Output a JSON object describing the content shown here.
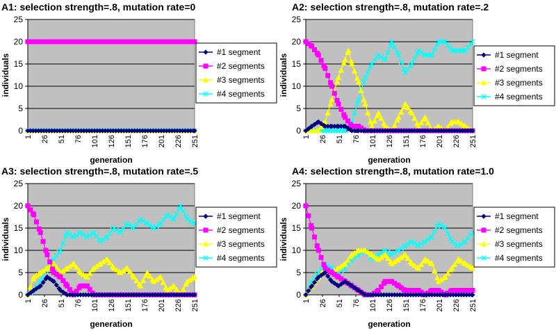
{
  "chart_data": [
    {
      "type": "line",
      "title": "A1: selection strength=.8, mutation rate=0",
      "xlabel": "generation",
      "ylabel": "individuals",
      "ylim": [
        0,
        25
      ],
      "yticks": [
        "0",
        "5",
        "10",
        "15",
        "20",
        "25"
      ],
      "xticks": [
        "1",
        "26",
        "51",
        "76",
        "101",
        "126",
        "151",
        "176",
        "201",
        "226",
        "251"
      ],
      "xtick_values": [
        1,
        26,
        51,
        76,
        101,
        126,
        151,
        176,
        201,
        226,
        251
      ],
      "xlim": [
        1,
        251
      ],
      "series": [
        {
          "name": "#1 segment",
          "color": "#000080",
          "marker": "diamond",
          "x": [
            1,
            251
          ],
          "y": [
            0,
            0
          ]
        },
        {
          "name": "#2 segments",
          "color": "#FF00FF",
          "marker": "square",
          "x": [
            1,
            251
          ],
          "y": [
            20,
            20
          ]
        },
        {
          "name": "#3 segments",
          "color": "#FFFF00",
          "marker": "triangle",
          "x": [
            1,
            251
          ],
          "y": [
            0,
            0
          ]
        },
        {
          "name": "#4 segments",
          "color": "#00FFFF",
          "marker": "x",
          "x": [
            1,
            251
          ],
          "y": [
            0,
            0
          ]
        }
      ]
    },
    {
      "type": "line",
      "title": "A2: selection strength=.8, mutation rate=.2",
      "xlabel": "generation",
      "ylabel": "individuals",
      "ylim": [
        0,
        25
      ],
      "yticks": [
        "0",
        "5",
        "10",
        "15",
        "20",
        "25"
      ],
      "xticks": [
        "1",
        "26",
        "51",
        "76",
        "101",
        "126",
        "151",
        "176",
        "201",
        "226",
        "251"
      ],
      "xtick_values": [
        1,
        26,
        51,
        76,
        101,
        126,
        151,
        176,
        201,
        226,
        251
      ],
      "xlim": [
        1,
        251
      ],
      "series": [
        {
          "name": "#1 segment",
          "color": "#000080",
          "marker": "diamond",
          "x": [
            1,
            10,
            20,
            30,
            40,
            50,
            60,
            70,
            80,
            90,
            100,
            251
          ],
          "y": [
            0,
            1,
            2,
            1,
            1,
            1,
            1,
            0,
            0,
            0,
            0,
            0
          ]
        },
        {
          "name": "#2 segments",
          "color": "#FF00FF",
          "marker": "square",
          "x": [
            1,
            10,
            20,
            30,
            40,
            50,
            60,
            70,
            80,
            90,
            100,
            120,
            140,
            180,
            200,
            230,
            251
          ],
          "y": [
            20,
            19,
            17,
            14,
            10,
            6,
            3,
            1,
            1,
            0,
            0,
            0,
            0,
            0,
            0,
            0,
            0
          ]
        },
        {
          "name": "#3 segments",
          "color": "#FFFF00",
          "marker": "triangle",
          "x": [
            1,
            20,
            30,
            40,
            50,
            60,
            65,
            70,
            80,
            90,
            100,
            110,
            120,
            130,
            140,
            150,
            160,
            170,
            180,
            190,
            200,
            210,
            220,
            230,
            240,
            251
          ],
          "y": [
            0,
            0,
            2,
            7,
            12,
            16,
            18,
            15,
            11,
            6,
            1,
            4,
            1,
            0,
            3,
            6,
            4,
            1,
            3,
            0,
            1,
            0,
            2,
            2,
            1,
            0
          ]
        },
        {
          "name": "#4 segments",
          "color": "#00FFFF",
          "marker": "x",
          "x": [
            1,
            30,
            50,
            60,
            70,
            80,
            90,
            100,
            110,
            120,
            130,
            140,
            150,
            160,
            170,
            180,
            190,
            200,
            210,
            220,
            230,
            240,
            251
          ],
          "y": [
            0,
            0,
            0,
            0,
            2,
            7,
            12,
            15,
            17,
            16,
            20,
            17,
            13,
            15,
            18,
            17,
            17,
            20,
            20,
            18,
            18,
            18,
            20
          ]
        }
      ]
    },
    {
      "type": "line",
      "title": "A3: selection strength=.8, mutation rate=.5",
      "xlabel": "generation",
      "ylabel": "individuals",
      "ylim": [
        0,
        25
      ],
      "yticks": [
        "0",
        "5",
        "10",
        "15",
        "20",
        "25"
      ],
      "xticks": [
        "1",
        "26",
        "51",
        "76",
        "101",
        "126",
        "151",
        "176",
        "201",
        "226",
        "251"
      ],
      "xtick_values": [
        1,
        26,
        51,
        76,
        101,
        126,
        151,
        176,
        201,
        226,
        251
      ],
      "xlim": [
        1,
        251
      ],
      "series": [
        {
          "name": "#1 segment",
          "color": "#000080",
          "marker": "diamond",
          "x": [
            1,
            10,
            20,
            30,
            40,
            50,
            60,
            251
          ],
          "y": [
            0,
            1,
            2,
            4,
            3,
            1,
            0,
            0
          ]
        },
        {
          "name": "#2 segments",
          "color": "#FF00FF",
          "marker": "square",
          "x": [
            1,
            10,
            20,
            30,
            40,
            50,
            60,
            70,
            80,
            90,
            100,
            110,
            120,
            150,
            200,
            251
          ],
          "y": [
            20,
            18,
            14,
            9,
            5,
            4,
            2,
            0,
            2,
            2,
            0,
            0,
            0,
            0,
            0,
            0
          ]
        },
        {
          "name": "#3 segments",
          "color": "#FFFF00",
          "marker": "triangle",
          "x": [
            1,
            10,
            20,
            30,
            40,
            50,
            60,
            70,
            80,
            90,
            100,
            110,
            120,
            130,
            140,
            150,
            160,
            170,
            180,
            190,
            200,
            210,
            220,
            230,
            240,
            251
          ],
          "y": [
            0,
            4,
            5,
            6,
            7,
            5,
            6,
            7,
            5,
            4,
            6,
            7,
            8,
            6,
            5,
            6,
            4,
            2,
            5,
            3,
            4,
            1,
            2,
            0,
            3,
            4
          ]
        },
        {
          "name": "#4 segments",
          "color": "#00FFFF",
          "marker": "x",
          "x": [
            1,
            10,
            20,
            30,
            40,
            50,
            60,
            70,
            80,
            90,
            100,
            110,
            120,
            130,
            140,
            150,
            160,
            170,
            180,
            190,
            200,
            210,
            220,
            230,
            240,
            251
          ],
          "y": [
            0,
            1,
            3,
            6,
            8,
            10,
            14,
            13,
            14,
            13,
            14,
            12,
            13,
            15,
            14,
            16,
            15,
            17,
            16,
            15,
            16,
            18,
            17,
            20,
            17,
            16
          ]
        }
      ]
    },
    {
      "type": "line",
      "title": "A4: selection strength=.8, mutation rate=1.0",
      "xlabel": "generation",
      "ylabel": "individuals",
      "ylim": [
        0,
        25
      ],
      "yticks": [
        "0",
        "5",
        "10",
        "15",
        "20",
        "25"
      ],
      "xticks": [
        "1",
        "26",
        "51",
        "76",
        "101",
        "126",
        "151",
        "176",
        "201",
        "226",
        "251"
      ],
      "xtick_values": [
        1,
        26,
        51,
        76,
        101,
        126,
        151,
        176,
        201,
        226,
        251
      ],
      "xlim": [
        1,
        251
      ],
      "series": [
        {
          "name": "#1 segment",
          "color": "#000080",
          "marker": "diamond",
          "x": [
            1,
            10,
            20,
            30,
            40,
            50,
            60,
            70,
            80,
            90,
            251
          ],
          "y": [
            0,
            2,
            4,
            5,
            3,
            2,
            3,
            2,
            1,
            0,
            0
          ]
        },
        {
          "name": "#2 segments",
          "color": "#FF00FF",
          "marker": "square",
          "x": [
            1,
            10,
            20,
            30,
            40,
            50,
            60,
            70,
            80,
            90,
            100,
            110,
            120,
            130,
            140,
            150,
            160,
            170,
            180,
            190,
            200,
            210,
            220,
            230,
            240,
            251
          ],
          "y": [
            20,
            15,
            10,
            6,
            5,
            4,
            3,
            2,
            1,
            0,
            0,
            1,
            3,
            3,
            2,
            1,
            1,
            1,
            0,
            1,
            1,
            0,
            1,
            1,
            1,
            1
          ]
        },
        {
          "name": "#3 segments",
          "color": "#FFFF00",
          "marker": "triangle",
          "x": [
            1,
            10,
            20,
            30,
            40,
            50,
            60,
            70,
            80,
            90,
            100,
            110,
            120,
            130,
            140,
            150,
            160,
            170,
            180,
            190,
            200,
            210,
            220,
            230,
            240,
            251
          ],
          "y": [
            0,
            2,
            4,
            6,
            5,
            6,
            7,
            9,
            10,
            10,
            9,
            8,
            9,
            7,
            8,
            9,
            7,
            6,
            8,
            7,
            3,
            4,
            6,
            8,
            7,
            6
          ]
        },
        {
          "name": "#4 segments",
          "color": "#00FFFF",
          "marker": "x",
          "x": [
            1,
            10,
            20,
            30,
            40,
            50,
            60,
            70,
            80,
            90,
            100,
            110,
            120,
            130,
            140,
            150,
            160,
            170,
            180,
            190,
            200,
            210,
            220,
            230,
            240,
            251
          ],
          "y": [
            0,
            3,
            5,
            7,
            6,
            5,
            6,
            8,
            9,
            10,
            8,
            9,
            10,
            9,
            10,
            11,
            12,
            11,
            12,
            13,
            16,
            15,
            12,
            11,
            12,
            14
          ]
        }
      ]
    }
  ]
}
